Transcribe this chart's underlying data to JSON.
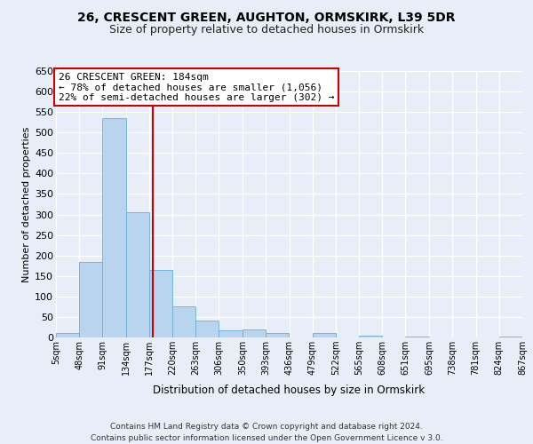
{
  "title1": "26, CRESCENT GREEN, AUGHTON, ORMSKIRK, L39 5DR",
  "title2": "Size of property relative to detached houses in Ormskirk",
  "xlabel": "Distribution of detached houses by size in Ormskirk",
  "ylabel": "Number of detached properties",
  "bin_edges": [
    5,
    48,
    91,
    134,
    177,
    220,
    263,
    306,
    350,
    393,
    436,
    479,
    522,
    565,
    608,
    651,
    695,
    738,
    781,
    824,
    867
  ],
  "bar_heights": [
    10,
    185,
    535,
    305,
    165,
    75,
    42,
    18,
    20,
    10,
    0,
    10,
    0,
    5,
    0,
    2,
    0,
    0,
    0,
    2
  ],
  "bar_color": "#b8d4ee",
  "bar_edge_color": "#6aaed6",
  "property_size": 184,
  "vline_color": "#cc0000",
  "box_facecolor": "#ffffff",
  "box_edgecolor": "#cc0000",
  "annotation_line1": "26 CRESCENT GREEN: 184sqm",
  "annotation_line2": "← 78% of detached houses are smaller (1,056)",
  "annotation_line3": "22% of semi-detached houses are larger (302) →",
  "ylim": [
    0,
    650
  ],
  "yticks": [
    0,
    50,
    100,
    150,
    200,
    250,
    300,
    350,
    400,
    450,
    500,
    550,
    600,
    650
  ],
  "footer1": "Contains HM Land Registry data © Crown copyright and database right 2024.",
  "footer2": "Contains public sector information licensed under the Open Government Licence v 3.0.",
  "bg_color": "#e8eef8",
  "grid_color": "#ffffff",
  "title1_fontsize": 10,
  "title2_fontsize": 9,
  "ylabel_fontsize": 8,
  "xlabel_fontsize": 8.5,
  "tick_fontsize": 7,
  "ytick_fontsize": 8,
  "footer_fontsize": 6.5,
  "annot_fontsize": 8
}
